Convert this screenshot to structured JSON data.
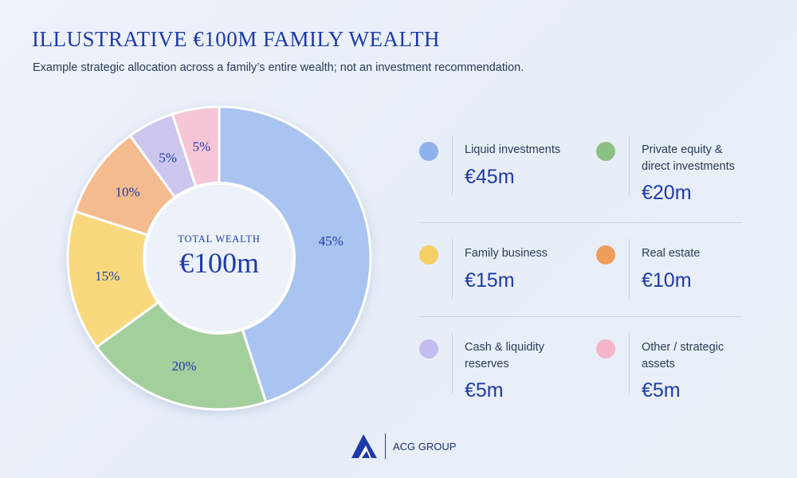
{
  "header": {
    "title": "ILLUSTRATIVE €100M FAMILY WEALTH",
    "subtitle": "Example strategic allocation across a family’s entire wealth; not an investment recommendation."
  },
  "chart_data": {
    "type": "pie",
    "title": "ILLUSTRATIVE €100M FAMILY WEALTH",
    "center_label": "TOTAL WEALTH",
    "center_value": "€100m",
    "slices": [
      {
        "label": "Liquid investments",
        "percent": 45,
        "pct_label": "45%",
        "value_label": "€45m",
        "color": "#a9c4f0"
      },
      {
        "label": "Private equity & direct investments",
        "percent": 20,
        "pct_label": "20%",
        "value_label": "€20m",
        "color": "#a3cf9c"
      },
      {
        "label": "Family business",
        "percent": 15,
        "pct_label": "15%",
        "value_label": "€15m",
        "color": "#f8d97e"
      },
      {
        "label": "Real estate",
        "percent": 10,
        "pct_label": "10%",
        "value_label": "€10m",
        "color": "#f3bb8e"
      },
      {
        "label": "Cash & liquidity reserves",
        "percent": 5,
        "pct_label": "5%",
        "value_label": "€5m",
        "color": "#ccc6ee"
      },
      {
        "label": "Other / strategic assets",
        "percent": 5,
        "pct_label": "5%",
        "value_label": "€5m",
        "color": "#f6c6d6"
      }
    ],
    "legend_placement": "right"
  },
  "legend": {
    "items": [
      {
        "label": "Liquid investments",
        "value": "€45m",
        "color": "#8fb2ec"
      },
      {
        "label": "Private equity & direct investments",
        "value": "€20m",
        "color": "#8cc185"
      },
      {
        "label": "Family business",
        "value": "€15m",
        "color": "#f4cf63"
      },
      {
        "label": "Real estate",
        "value": "€10m",
        "color": "#ee9d5b"
      },
      {
        "label": "Cash & liquidity reserves",
        "value": "€5m",
        "color": "#c4bdf0"
      },
      {
        "label": "Other / strategic assets",
        "value": "€5m",
        "color": "#f4b5ca"
      }
    ]
  },
  "footer": {
    "brand": "ACG GROUP",
    "logo_icon": "mountain-logo-icon",
    "logo_color": "#1e3aa8"
  }
}
